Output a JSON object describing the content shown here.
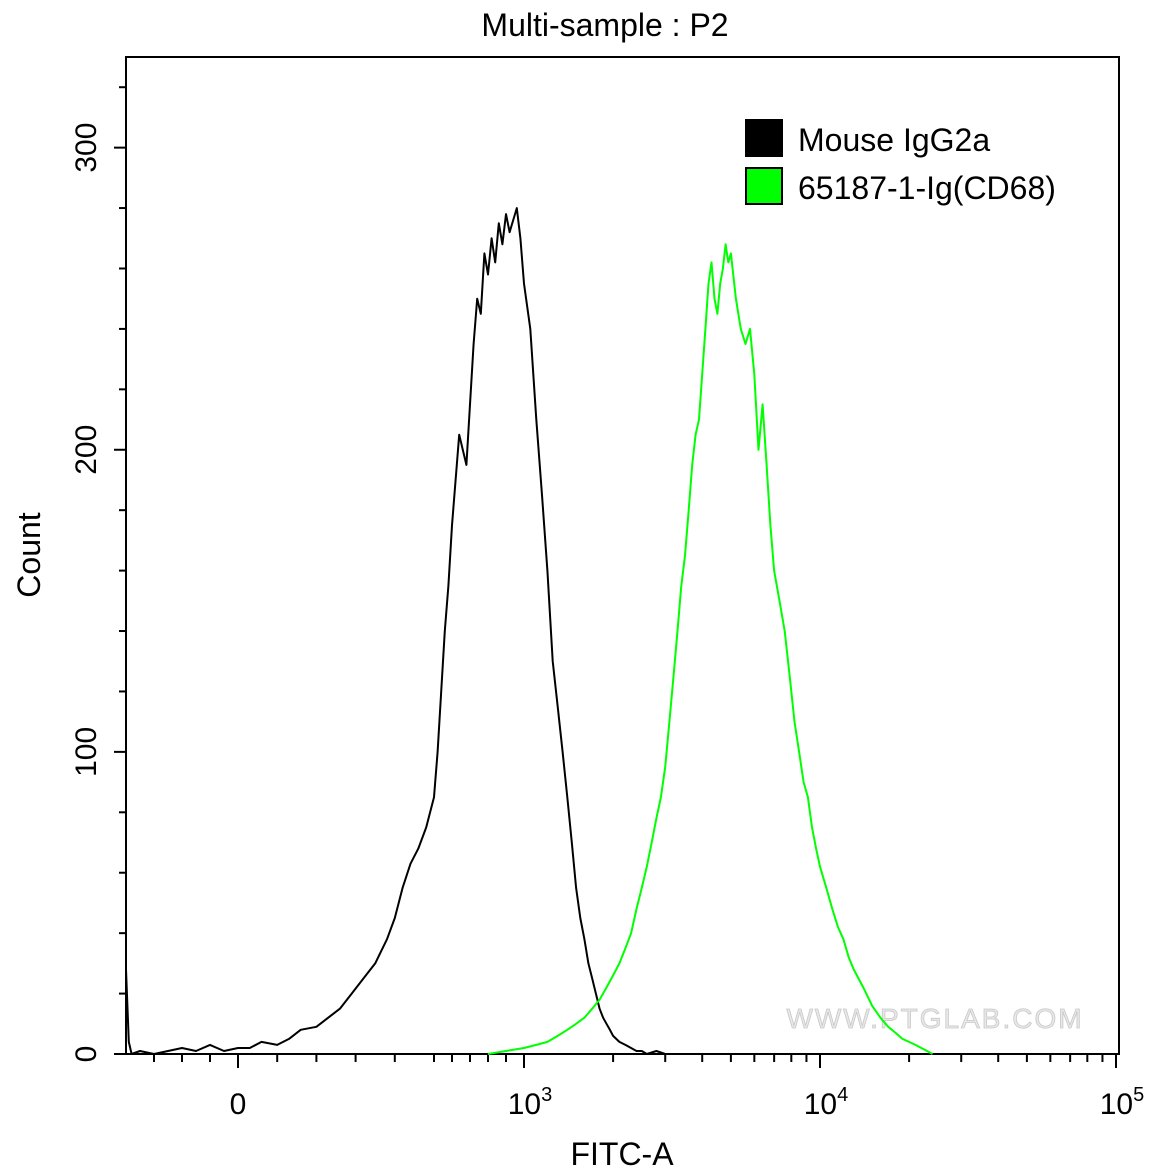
{
  "chart_data": {
    "type": "line",
    "title": "Multi-sample : P2",
    "xlabel": "FITC-A",
    "ylabel": "Count",
    "x_scale": "biexponential",
    "xlim": [
      -400,
      100000
    ],
    "ylim": [
      0,
      330
    ],
    "x_ticks": [
      {
        "value": 0,
        "label": "0",
        "base": "",
        "exp": ""
      },
      {
        "value": 1000,
        "label": "",
        "base": "10",
        "exp": "3"
      },
      {
        "value": 10000,
        "label": "",
        "base": "10",
        "exp": "4"
      },
      {
        "value": 100000,
        "label": "",
        "base": "10",
        "exp": "5"
      }
    ],
    "y_ticks": [
      0,
      100,
      200,
      300
    ],
    "watermark": "WWW.PTGLAB.COM",
    "series": [
      {
        "name": "Mouse IgG2a",
        "color": "#000000",
        "x": [
          -400,
          -390,
          -380,
          -350,
          -300,
          -250,
          -200,
          -150,
          -100,
          -50,
          0,
          30,
          60,
          100,
          130,
          160,
          200,
          230,
          260,
          290,
          320,
          350,
          380,
          400,
          420,
          440,
          460,
          480,
          500,
          520,
          540,
          560,
          580,
          600,
          620,
          640,
          660,
          680,
          700,
          720,
          740,
          760,
          780,
          800,
          820,
          840,
          860,
          880,
          900,
          920,
          940,
          960,
          980,
          1000,
          1050,
          1100,
          1150,
          1200,
          1250,
          1300,
          1350,
          1400,
          1450,
          1500,
          1550,
          1600,
          1650,
          1700,
          1750,
          1800,
          1850,
          1900,
          1950,
          2000,
          2100,
          2200,
          2300,
          2400,
          2500,
          2600,
          2800,
          3000,
          3500
        ],
        "y": [
          28,
          4,
          0,
          1,
          0,
          1,
          2,
          1,
          3,
          1,
          2,
          2,
          4,
          3,
          5,
          8,
          9,
          12,
          15,
          20,
          25,
          30,
          38,
          45,
          55,
          63,
          68,
          75,
          85,
          100,
          120,
          140,
          155,
          175,
          190,
          205,
          200,
          195,
          215,
          235,
          250,
          245,
          265,
          258,
          270,
          262,
          275,
          268,
          278,
          272,
          276,
          280,
          270,
          255,
          240,
          210,
          185,
          160,
          130,
          115,
          100,
          85,
          70,
          55,
          45,
          38,
          30,
          25,
          20,
          15,
          12,
          10,
          8,
          6,
          4,
          3,
          2,
          1,
          1,
          0,
          1,
          0,
          0
        ]
      },
      {
        "name": "65187-1-Ig(CD68)",
        "color": "#00ff00",
        "x": [
          800,
          900,
          1000,
          1100,
          1200,
          1300,
          1400,
          1500,
          1600,
          1700,
          1800,
          1900,
          2000,
          2100,
          2200,
          2300,
          2400,
          2500,
          2600,
          2700,
          2800,
          2900,
          3000,
          3100,
          3200,
          3300,
          3400,
          3500,
          3600,
          3700,
          3800,
          3900,
          4000,
          4100,
          4200,
          4300,
          4400,
          4500,
          4600,
          4700,
          4800,
          4900,
          5000,
          5200,
          5400,
          5600,
          5800,
          6000,
          6200,
          6400,
          6600,
          6800,
          7000,
          7300,
          7600,
          7900,
          8200,
          8500,
          8800,
          9100,
          9400,
          9700,
          10000,
          10500,
          11000,
          11500,
          12000,
          12500,
          13000,
          14000,
          15000,
          16000,
          17000,
          18000,
          19000,
          20000,
          21000,
          22000,
          23000,
          24000
        ],
        "y": [
          0,
          1,
          2,
          3,
          4,
          6,
          8,
          10,
          12,
          15,
          18,
          22,
          26,
          30,
          35,
          40,
          48,
          55,
          62,
          70,
          78,
          85,
          95,
          110,
          125,
          140,
          155,
          165,
          180,
          195,
          205,
          210,
          225,
          240,
          255,
          262,
          250,
          245,
          255,
          260,
          268,
          262,
          265,
          250,
          240,
          235,
          240,
          225,
          200,
          215,
          195,
          175,
          160,
          150,
          140,
          125,
          110,
          100,
          90,
          85,
          75,
          68,
          62,
          55,
          48,
          42,
          38,
          32,
          28,
          22,
          16,
          12,
          9,
          7,
          5,
          4,
          3,
          2,
          1,
          0
        ]
      }
    ]
  }
}
